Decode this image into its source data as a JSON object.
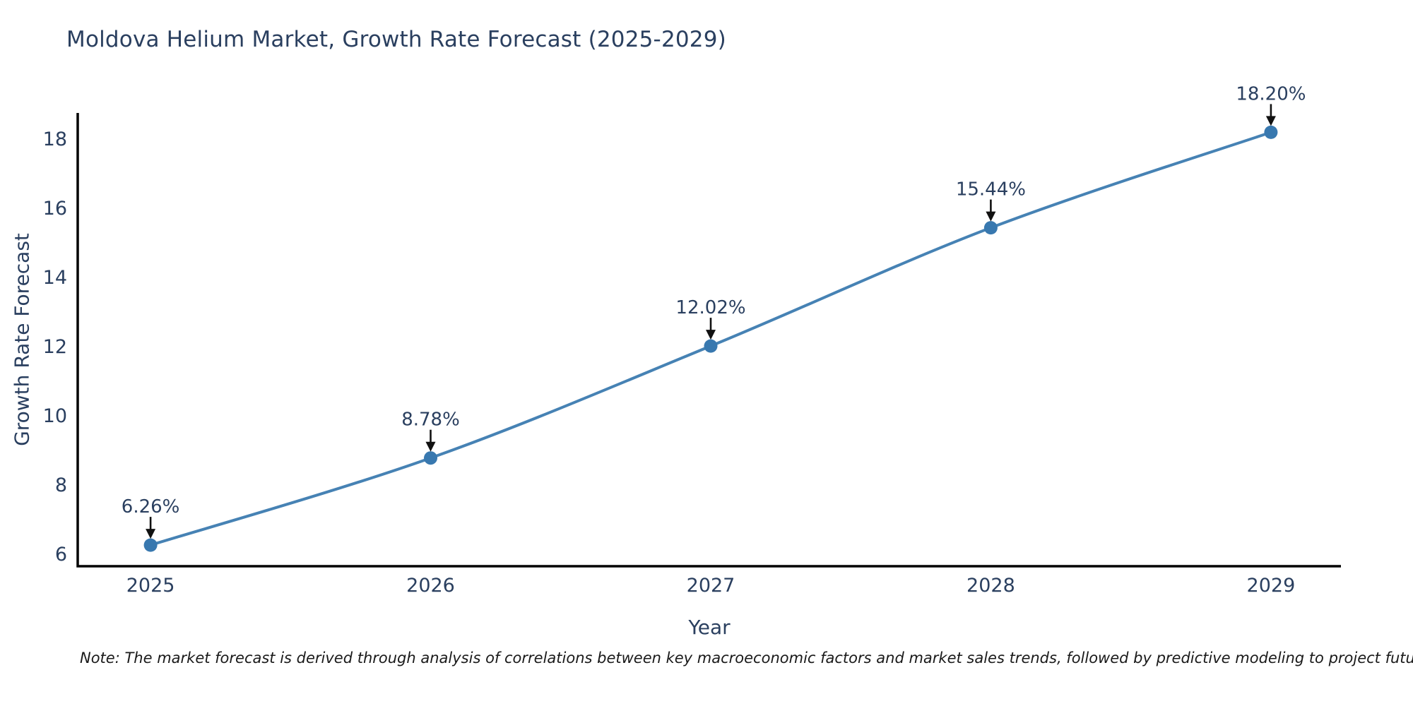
{
  "title": "Moldova Helium Market, Growth Rate Forecast (2025-2029)",
  "note": "Note: The market forecast is derived through analysis of correlations between key macroeconomic factors and market sales trends, followed by predictive modeling to project future sales",
  "chart_data": {
    "type": "line",
    "title": "Moldova Helium Market, Growth Rate Forecast (2025-2029)",
    "xlabel": "Year",
    "ylabel": "Growth Rate Forecast",
    "x": [
      2025,
      2026,
      2027,
      2028,
      2029
    ],
    "series": [
      {
        "name": "Growth Rate Forecast",
        "values": [
          6.26,
          8.78,
          12.02,
          15.44,
          18.2
        ],
        "point_labels": [
          "6.26%",
          "8.78%",
          "12.02%",
          "15.44%",
          "18.20%"
        ]
      }
    ],
    "yticks": [
      6,
      8,
      10,
      12,
      14,
      16,
      18
    ],
    "ylim": [
      5.65,
      18.76
    ],
    "xlim": [
      2024.74,
      2029.25
    ],
    "grid": false,
    "legend_position": "none",
    "line_shape": "spline",
    "annotations_style": "value label with downward arrow at each point",
    "colors": {
      "line": "#4682b4",
      "marker": "#3878af",
      "text": "#2a3f5f",
      "axis": "#000000",
      "arrow": "#111111"
    }
  }
}
